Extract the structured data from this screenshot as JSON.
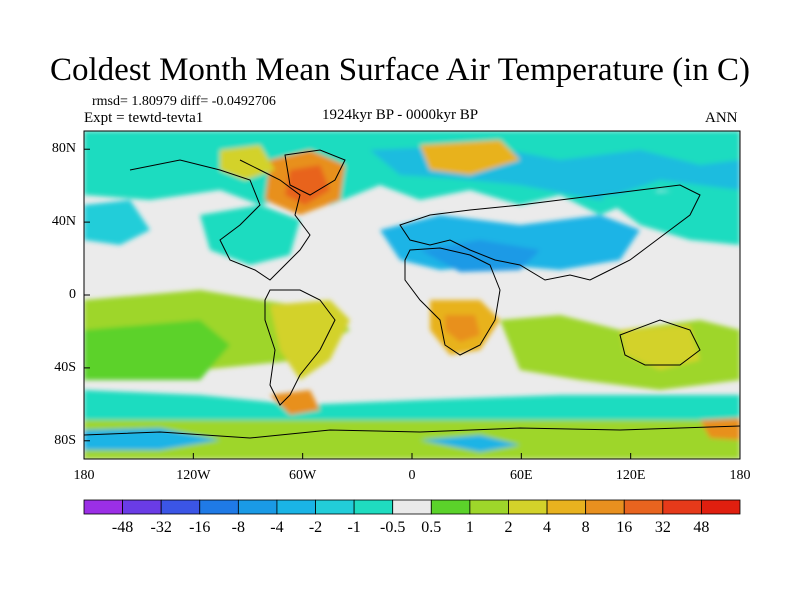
{
  "figure": {
    "title": "Coldest Month Mean Surface Air Temperature (in C)",
    "stats_line": "rmsd= 1.80979 diff= -0.0492706",
    "experiment": "Expt = tewtd-tevta1",
    "period": "1924kyr BP - 0000kyr BP",
    "season": "ANN"
  },
  "map": {
    "projection": "cylindrical-equidistant",
    "lon_range": [
      -180,
      180
    ],
    "lat_range": [
      -90,
      90
    ],
    "x_tick_labels": [
      "180",
      "120W",
      "60W",
      "0",
      "60E",
      "120E",
      "180"
    ],
    "y_tick_labels": [
      "80N",
      "40N",
      "0",
      "40S",
      "80S"
    ],
    "background_color": "#ebebeb",
    "coastline_color": "#000000"
  },
  "colorbar": {
    "labels": [
      "-48",
      "-32",
      "-16",
      "-8",
      "-4",
      "-2",
      "-1",
      "-0.5",
      "0.5",
      "1",
      "2",
      "4",
      "8",
      "16",
      "32",
      "48"
    ],
    "colors": [
      "#9b2fe6",
      "#6a3ce6",
      "#3b55e6",
      "#1f7ae6",
      "#1a9ae6",
      "#1ab4e6",
      "#22cdd9",
      "#1fdcc0",
      "#eaeaea",
      "#5bd22a",
      "#9ed62a",
      "#d3d22a",
      "#e8b21f",
      "#e8901f",
      "#e8641f",
      "#e63a1a",
      "#e01f0f"
    ]
  }
}
